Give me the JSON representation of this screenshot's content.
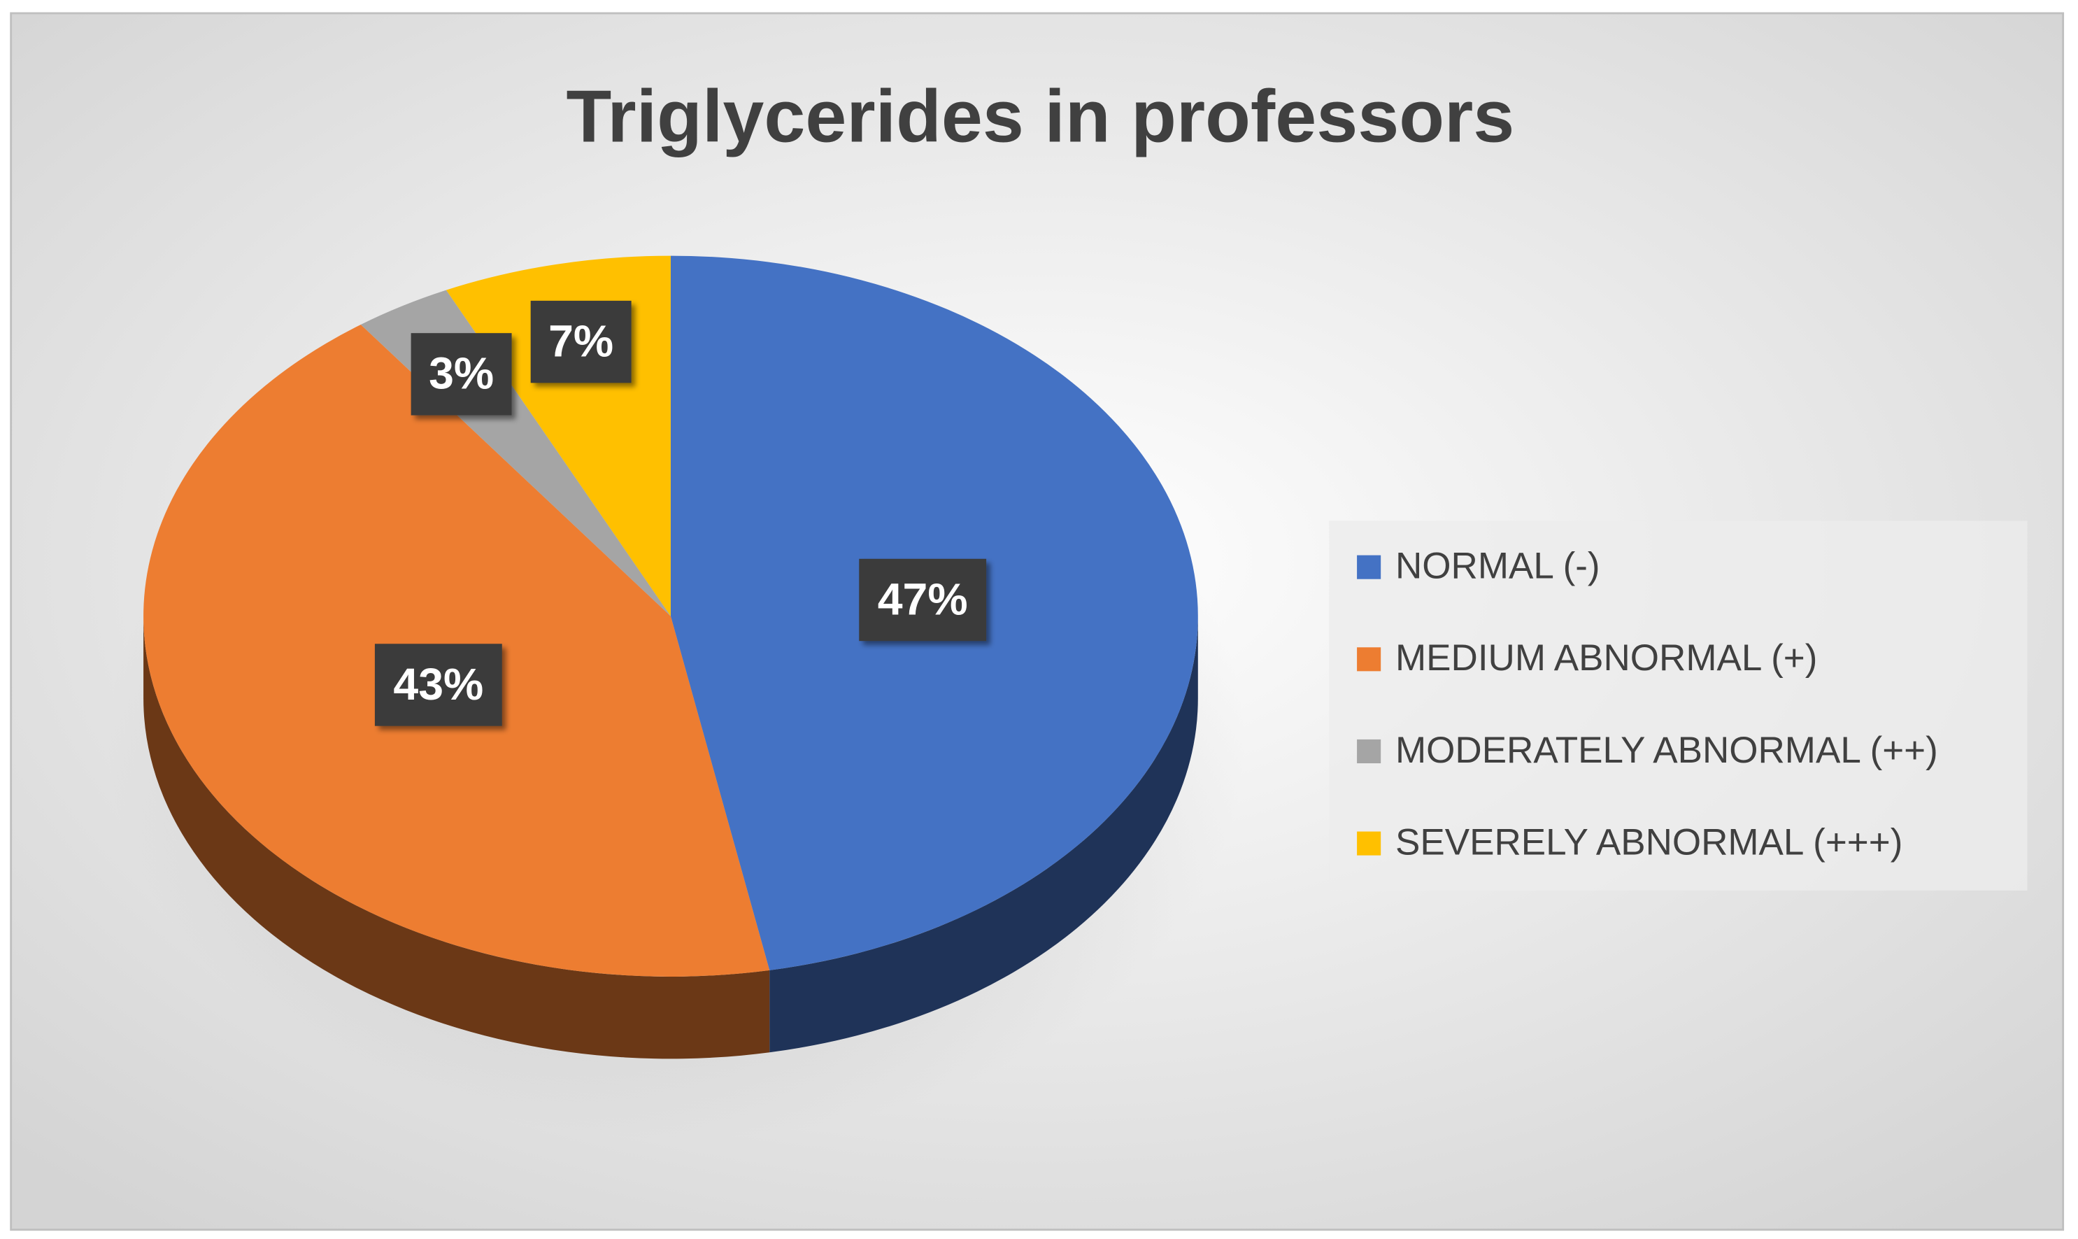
{
  "chart_data": {
    "type": "pie",
    "title": "Triglycerides in professors",
    "categories": [
      "NORMAL (-)",
      "MEDIUM ABNORMAL (+)",
      "MODERATELY ABNORMAL (++)",
      "SEVERELY ABNORMAL (+++)"
    ],
    "values": [
      47,
      43,
      3,
      7
    ],
    "value_labels": [
      "47%",
      "43%",
      "3%",
      "7%"
    ],
    "colors": [
      "#4472c4",
      "#ed7d31",
      "#a5a5a5",
      "#ffc000"
    ],
    "legend": "right"
  }
}
